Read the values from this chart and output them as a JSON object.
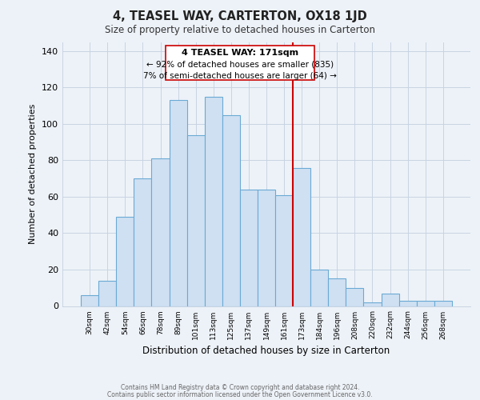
{
  "title": "4, TEASEL WAY, CARTERTON, OX18 1JD",
  "subtitle": "Size of property relative to detached houses in Carterton",
  "xlabel": "Distribution of detached houses by size in Carterton",
  "ylabel": "Number of detached properties",
  "footer_line1": "Contains HM Land Registry data © Crown copyright and database right 2024.",
  "footer_line2": "Contains public sector information licensed under the Open Government Licence v3.0.",
  "bin_labels": [
    "30sqm",
    "42sqm",
    "54sqm",
    "66sqm",
    "78sqm",
    "89sqm",
    "101sqm",
    "113sqm",
    "125sqm",
    "137sqm",
    "149sqm",
    "161sqm",
    "173sqm",
    "184sqm",
    "196sqm",
    "208sqm",
    "220sqm",
    "232sqm",
    "244sqm",
    "256sqm",
    "268sqm"
  ],
  "bar_heights": [
    6,
    14,
    49,
    70,
    81,
    113,
    94,
    115,
    105,
    64,
    64,
    61,
    76,
    20,
    15,
    10,
    2,
    7,
    3,
    3,
    3
  ],
  "bar_color": "#cfe0f2",
  "bar_edge_color": "#6aaad4",
  "vline_index": 12,
  "vline_color": "#cc0000",
  "annotation_title": "4 TEASEL WAY: 171sqm",
  "annotation_line1": "← 92% of detached houses are smaller (835)",
  "annotation_line2": "7% of semi-detached houses are larger (64) →",
  "annotation_box_color": "#ffffff",
  "annotation_box_edge": "#cc0000",
  "ylim": [
    0,
    145
  ],
  "yticks": [
    0,
    20,
    40,
    60,
    80,
    100,
    120,
    140
  ],
  "background_color": "#edf2f8",
  "plot_background": "#edf2f8",
  "grid_color": "#c8d4e3"
}
